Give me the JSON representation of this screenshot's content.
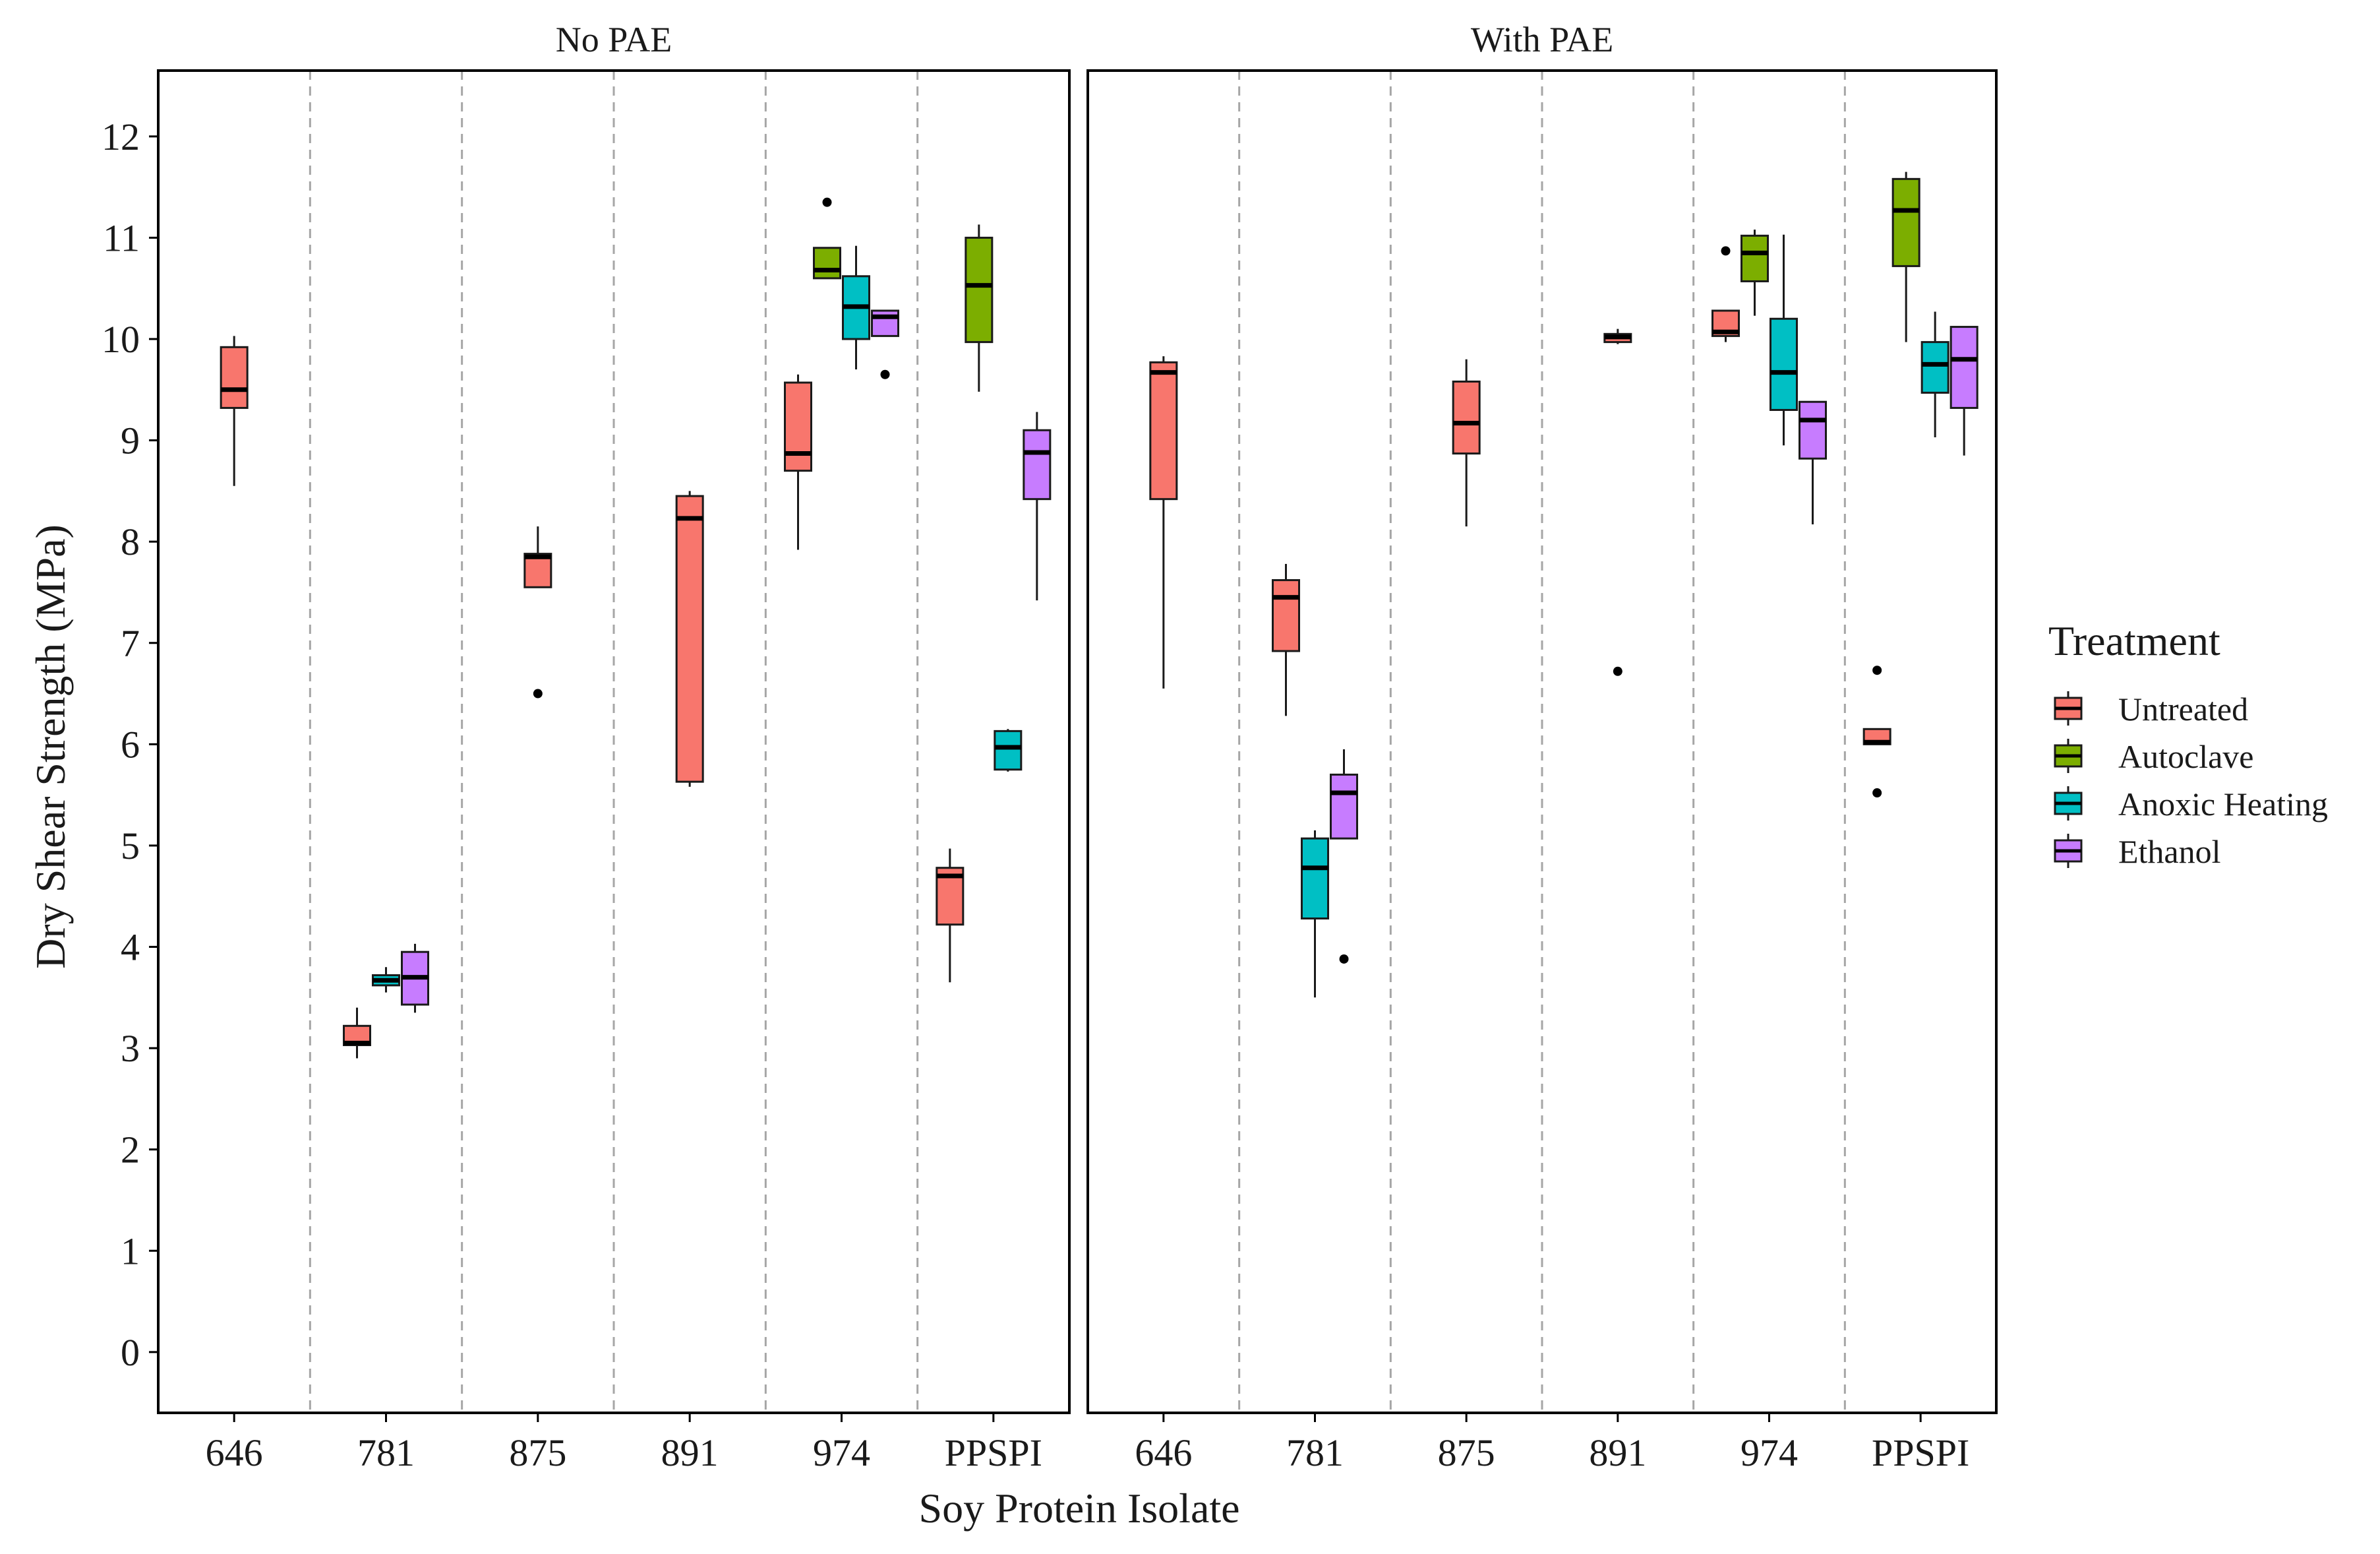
{
  "chart_data": {
    "type": "boxplot",
    "ylabel": "Dry Shear Strength (MPa)",
    "xlabel": "Soy Protein Isolate",
    "ylim": [
      -0.6,
      12.65
    ],
    "yticks": [
      "0",
      "1",
      "2",
      "3",
      "4",
      "5",
      "6",
      "7",
      "8",
      "9",
      "10",
      "11",
      "12"
    ],
    "categories": [
      "646",
      "781",
      "875",
      "891",
      "974",
      "PPSPI"
    ],
    "legend": {
      "title": "Treatment",
      "position": "right",
      "items": [
        {
          "key": "untreated",
          "label": "Untreated",
          "color": "#F8766D"
        },
        {
          "key": "autoclave",
          "label": "Autoclave",
          "color": "#7CAE00"
        },
        {
          "key": "anoxic",
          "label": "Anoxic Heating",
          "color": "#00BFC4"
        },
        {
          "key": "ethanol",
          "label": "Ethanol",
          "color": "#C77CFF"
        }
      ]
    },
    "panels": [
      {
        "title": "No PAE",
        "boxes": [
          {
            "category": "646",
            "treatment": "untreated",
            "slot": 0,
            "whisker_low": 8.55,
            "q1": 9.32,
            "median": 9.5,
            "q3": 9.92,
            "whisker_high": 10.03,
            "outliers": []
          },
          {
            "category": "781",
            "treatment": "untreated",
            "slot": 0,
            "whisker_low": 2.9,
            "q1": 3.03,
            "median": 3.05,
            "q3": 3.22,
            "whisker_high": 3.4,
            "outliers": []
          },
          {
            "category": "781",
            "treatment": "anoxic",
            "slot": 1,
            "whisker_low": 3.55,
            "q1": 3.62,
            "median": 3.67,
            "q3": 3.72,
            "whisker_high": 3.8,
            "outliers": []
          },
          {
            "category": "781",
            "treatment": "ethanol",
            "slot": 2,
            "whisker_low": 3.35,
            "q1": 3.43,
            "median": 3.7,
            "q3": 3.95,
            "whisker_high": 4.03,
            "outliers": []
          },
          {
            "category": "875",
            "treatment": "untreated",
            "slot": 0,
            "whisker_low": 7.55,
            "q1": 7.55,
            "median": 7.85,
            "q3": 7.88,
            "whisker_high": 8.15,
            "outliers": [
              6.5
            ]
          },
          {
            "category": "891",
            "treatment": "untreated",
            "slot": 0,
            "whisker_low": 5.58,
            "q1": 5.63,
            "median": 8.23,
            "q3": 8.45,
            "whisker_high": 8.5,
            "outliers": []
          },
          {
            "category": "974",
            "treatment": "untreated",
            "slot": 0,
            "whisker_low": 7.92,
            "q1": 8.7,
            "median": 8.87,
            "q3": 9.57,
            "whisker_high": 9.65,
            "outliers": []
          },
          {
            "category": "974",
            "treatment": "autoclave",
            "slot": 1,
            "whisker_low": 10.6,
            "q1": 10.6,
            "median": 10.68,
            "q3": 10.9,
            "whisker_high": 10.9,
            "outliers": [
              11.35
            ]
          },
          {
            "category": "974",
            "treatment": "anoxic",
            "slot": 2,
            "whisker_low": 9.7,
            "q1": 10.0,
            "median": 10.32,
            "q3": 10.62,
            "whisker_high": 10.92,
            "outliers": []
          },
          {
            "category": "974",
            "treatment": "ethanol",
            "slot": 3,
            "whisker_low": 10.03,
            "q1": 10.03,
            "median": 10.22,
            "q3": 10.28,
            "whisker_high": 10.28,
            "outliers": [
              9.65
            ]
          },
          {
            "category": "PPSPI",
            "treatment": "untreated",
            "slot": 0,
            "whisker_low": 3.65,
            "q1": 4.22,
            "median": 4.7,
            "q3": 4.78,
            "whisker_high": 4.97,
            "outliers": []
          },
          {
            "category": "PPSPI",
            "treatment": "autoclave",
            "slot": 1,
            "whisker_low": 9.48,
            "q1": 9.97,
            "median": 10.53,
            "q3": 11.0,
            "whisker_high": 11.13,
            "outliers": []
          },
          {
            "category": "PPSPI",
            "treatment": "anoxic",
            "slot": 2,
            "whisker_low": 5.73,
            "q1": 5.75,
            "median": 5.97,
            "q3": 6.13,
            "whisker_high": 6.15,
            "outliers": []
          },
          {
            "category": "PPSPI",
            "treatment": "ethanol",
            "slot": 3,
            "whisker_low": 7.42,
            "q1": 8.42,
            "median": 8.88,
            "q3": 9.1,
            "whisker_high": 9.28,
            "outliers": []
          }
        ]
      },
      {
        "title": "With PAE",
        "boxes": [
          {
            "category": "646",
            "treatment": "untreated",
            "slot": 0,
            "whisker_low": 6.55,
            "q1": 8.42,
            "median": 9.67,
            "q3": 9.77,
            "whisker_high": 9.83,
            "outliers": []
          },
          {
            "category": "781",
            "treatment": "untreated",
            "slot": 0,
            "whisker_low": 6.28,
            "q1": 6.92,
            "median": 7.45,
            "q3": 7.62,
            "whisker_high": 7.78,
            "outliers": []
          },
          {
            "category": "781",
            "treatment": "anoxic",
            "slot": 1,
            "whisker_low": 3.5,
            "q1": 4.28,
            "median": 4.78,
            "q3": 5.07,
            "whisker_high": 5.15,
            "outliers": []
          },
          {
            "category": "781",
            "treatment": "ethanol",
            "slot": 2,
            "whisker_low": 5.07,
            "q1": 5.07,
            "median": 5.52,
            "q3": 5.7,
            "whisker_high": 5.95,
            "outliers": [
              3.88
            ]
          },
          {
            "category": "875",
            "treatment": "untreated",
            "slot": 0,
            "whisker_low": 8.15,
            "q1": 8.87,
            "median": 9.17,
            "q3": 9.58,
            "whisker_high": 9.8,
            "outliers": []
          },
          {
            "category": "891",
            "treatment": "untreated",
            "slot": 0,
            "whisker_low": 9.95,
            "q1": 9.97,
            "median": 10.02,
            "q3": 10.05,
            "whisker_high": 10.1,
            "outliers": [
              6.72
            ]
          },
          {
            "category": "974",
            "treatment": "untreated",
            "slot": 0,
            "whisker_low": 9.97,
            "q1": 10.03,
            "median": 10.07,
            "q3": 10.28,
            "whisker_high": 10.28,
            "outliers": [
              10.87
            ]
          },
          {
            "category": "974",
            "treatment": "autoclave",
            "slot": 1,
            "whisker_low": 10.23,
            "q1": 10.57,
            "median": 10.85,
            "q3": 11.02,
            "whisker_high": 11.08,
            "outliers": []
          },
          {
            "category": "974",
            "treatment": "anoxic",
            "slot": 2,
            "whisker_low": 8.95,
            "q1": 9.3,
            "median": 9.67,
            "q3": 10.2,
            "whisker_high": 11.03,
            "outliers": []
          },
          {
            "category": "974",
            "treatment": "ethanol",
            "slot": 3,
            "whisker_low": 8.17,
            "q1": 8.82,
            "median": 9.2,
            "q3": 9.38,
            "whisker_high": 9.38,
            "outliers": []
          },
          {
            "category": "PPSPI",
            "treatment": "untreated",
            "slot": 0,
            "whisker_low": 6.0,
            "q1": 6.0,
            "median": 6.02,
            "q3": 6.15,
            "whisker_high": 6.15,
            "outliers": [
              6.73,
              5.52
            ]
          },
          {
            "category": "PPSPI",
            "treatment": "autoclave",
            "slot": 1,
            "whisker_low": 9.97,
            "q1": 10.72,
            "median": 11.27,
            "q3": 11.58,
            "whisker_high": 11.65,
            "outliers": []
          },
          {
            "category": "PPSPI",
            "treatment": "anoxic",
            "slot": 2,
            "whisker_low": 9.03,
            "q1": 9.47,
            "median": 9.75,
            "q3": 9.97,
            "whisker_high": 10.27,
            "outliers": []
          },
          {
            "category": "PPSPI",
            "treatment": "ethanol",
            "slot": 3,
            "whisker_low": 8.85,
            "q1": 9.32,
            "median": 9.8,
            "q3": 10.12,
            "whisker_high": 10.12,
            "outliers": []
          }
        ]
      }
    ]
  }
}
